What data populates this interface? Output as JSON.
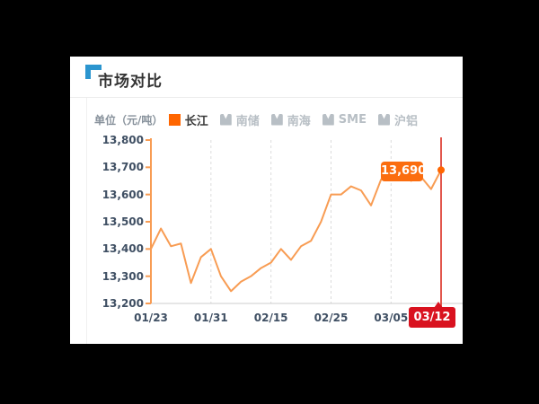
{
  "card": {
    "title": "市场对比"
  },
  "legend": {
    "unit_label": "单位（元/吨）",
    "items": [
      {
        "label": "长江",
        "active": true
      },
      {
        "label": "南储",
        "active": false
      },
      {
        "label": "南海",
        "active": false
      },
      {
        "label": "SME",
        "active": false
      },
      {
        "label": "沪铝",
        "active": false
      }
    ]
  },
  "colors": {
    "accent_orange": "#ff6600",
    "line_orange": "#f89c53",
    "tooltip_orange": "#fb6d0f",
    "badge_red": "#d9121f",
    "marker_red_line": "#e2574d",
    "grid_gray": "#dcdcdc",
    "axis_gray": "#cccccc",
    "label_color": "#3f4f63",
    "title_blue": "#2b95cf"
  },
  "chart_data": {
    "type": "line",
    "unit": "元/吨",
    "series": [
      {
        "name": "长江",
        "values": [
          13400,
          13475,
          13410,
          13420,
          13275,
          13370,
          13400,
          13300,
          13245,
          13280,
          13300,
          13330,
          13350,
          13400,
          13360,
          13410,
          13430,
          13500,
          13600,
          13600,
          13630,
          13615,
          13560,
          13655,
          13685,
          13695,
          13650,
          13665,
          13620,
          13690
        ]
      }
    ],
    "x_tick_labels": [
      "01/23",
      "01/31",
      "02/15",
      "02/25",
      "03/05",
      "03/12"
    ],
    "x_tick_indices": [
      0,
      6,
      12,
      18,
      24,
      29
    ],
    "y_ticks": [
      13800,
      13700,
      13600,
      13500,
      13400,
      13300,
      13200
    ],
    "ylim": [
      13200,
      13800
    ],
    "grid": "vertical-dashed",
    "legend_position": "top",
    "last_value_label": "13,690",
    "last_date_label": "03/12"
  }
}
